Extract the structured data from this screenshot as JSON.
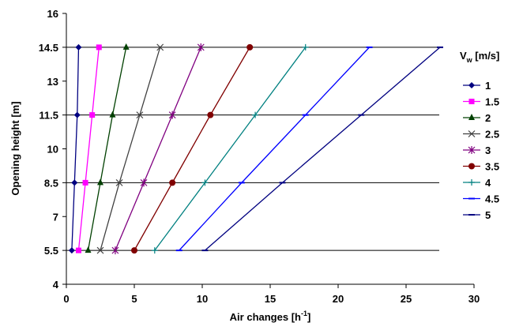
{
  "chart_data": {
    "type": "line",
    "xlabel": "Air changes [h",
    "xlabel_sup": "-1",
    "xlabel_end": "]",
    "ylabel": "Opening height [m]",
    "xlim": [
      0,
      30
    ],
    "ylim": [
      4,
      16
    ],
    "xticks": [
      "0",
      "5",
      "10",
      "15",
      "20",
      "25",
      "30"
    ],
    "yticks": [
      "4",
      "5.5",
      "7",
      "8.5",
      "10",
      "11.5",
      "13",
      "14.5",
      "16"
    ],
    "grid": "horizontal lines at data heights",
    "legend": {
      "title_main": "V",
      "title_sub": "w",
      "title_unit": " [m/s]",
      "placement": "right"
    },
    "series": [
      {
        "name": "1",
        "color": "#000080",
        "marker": "diamond",
        "x": [
          0.4,
          0.6,
          0.8,
          0.9
        ],
        "y": [
          5.5,
          8.5,
          11.5,
          14.5
        ]
      },
      {
        "name": "1.5",
        "color": "#ff00ff",
        "marker": "square",
        "x": [
          0.9,
          1.4,
          1.9,
          2.4
        ],
        "y": [
          5.5,
          8.5,
          11.5,
          14.5
        ]
      },
      {
        "name": "2",
        "color": "#004000",
        "marker": "triangle",
        "x": [
          1.6,
          2.5,
          3.4,
          4.4
        ],
        "y": [
          5.5,
          8.5,
          11.5,
          14.5
        ]
      },
      {
        "name": "2.5",
        "color": "#404040",
        "marker": "x",
        "x": [
          2.5,
          3.9,
          5.4,
          6.9
        ],
        "y": [
          5.5,
          8.5,
          11.5,
          14.5
        ]
      },
      {
        "name": "3",
        "color": "#800080",
        "marker": "star",
        "x": [
          3.6,
          5.7,
          7.8,
          9.9
        ],
        "y": [
          5.5,
          8.5,
          11.5,
          14.5
        ]
      },
      {
        "name": "3.5",
        "color": "#800000",
        "marker": "circle",
        "x": [
          5.0,
          7.8,
          10.6,
          13.5
        ],
        "y": [
          5.5,
          8.5,
          11.5,
          14.5
        ]
      },
      {
        "name": "4",
        "color": "#008080",
        "marker": "plus",
        "x": [
          6.5,
          10.2,
          13.9,
          17.6
        ],
        "y": [
          5.5,
          8.5,
          11.5,
          14.5
        ]
      },
      {
        "name": "4.5",
        "color": "#0000ff",
        "marker": "dash",
        "x": [
          8.3,
          12.9,
          17.6,
          22.3
        ],
        "y": [
          5.5,
          8.5,
          11.5,
          14.5
        ]
      },
      {
        "name": "5",
        "color": "#000080",
        "marker": "dash",
        "x": [
          10.2,
          15.9,
          21.7,
          27.5
        ],
        "y": [
          5.5,
          8.5,
          11.5,
          14.5
        ]
      }
    ]
  }
}
